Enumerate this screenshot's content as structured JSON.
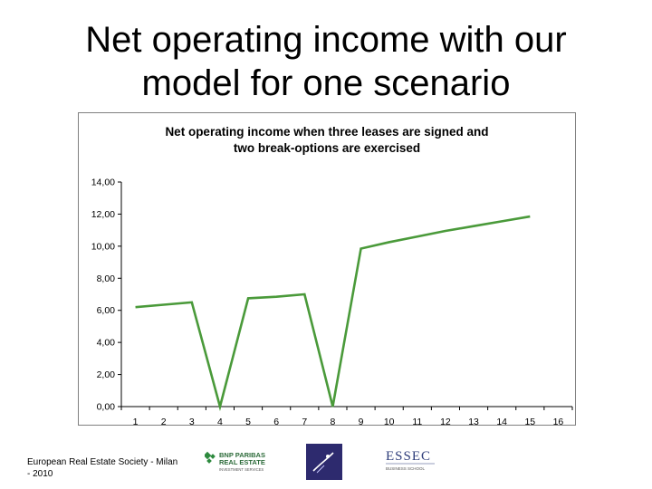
{
  "slide": {
    "title_line1": "Net operating income with our",
    "title_line2": "model for one scenario"
  },
  "footer": {
    "text_line1": "European Real Estate Society - Milan",
    "text_line2": "- 2010",
    "logos": {
      "bnp_line1": "BNP PARIBAS",
      "bnp_line2": "REAL ESTATE",
      "bnp_line3": "INVESTMENT SERVICES",
      "essec_name": "ESSEC",
      "essec_sub": "BUSINESS SCHOOL"
    }
  },
  "chart_data": {
    "type": "line",
    "title_line1": "Net operating income when three leases are signed and",
    "title_line2": "two break-options are exercised",
    "x": [
      1,
      2,
      3,
      4,
      5,
      6,
      7,
      8,
      9,
      10,
      11,
      12,
      13,
      14,
      15
    ],
    "x_tick_labels": [
      "1",
      "2",
      "3",
      "4",
      "5",
      "6",
      "7",
      "8",
      "9",
      "10",
      "11",
      "12",
      "13",
      "14",
      "15",
      "16"
    ],
    "series": [
      {
        "values": [
          6.2,
          6.35,
          6.5,
          0.0,
          6.75,
          6.85,
          7.0,
          0.0,
          9.85,
          10.25,
          10.6,
          10.95,
          11.25,
          11.55,
          11.85
        ],
        "color": "#4a9a3a"
      }
    ],
    "y_tick_labels": [
      "0,00",
      "2,00",
      "4,00",
      "6,00",
      "8,00",
      "10,00",
      "12,00",
      "14,00"
    ],
    "ylim": [
      0,
      14
    ],
    "xlabel": "",
    "ylabel": "",
    "grid": false,
    "legend": "none"
  }
}
